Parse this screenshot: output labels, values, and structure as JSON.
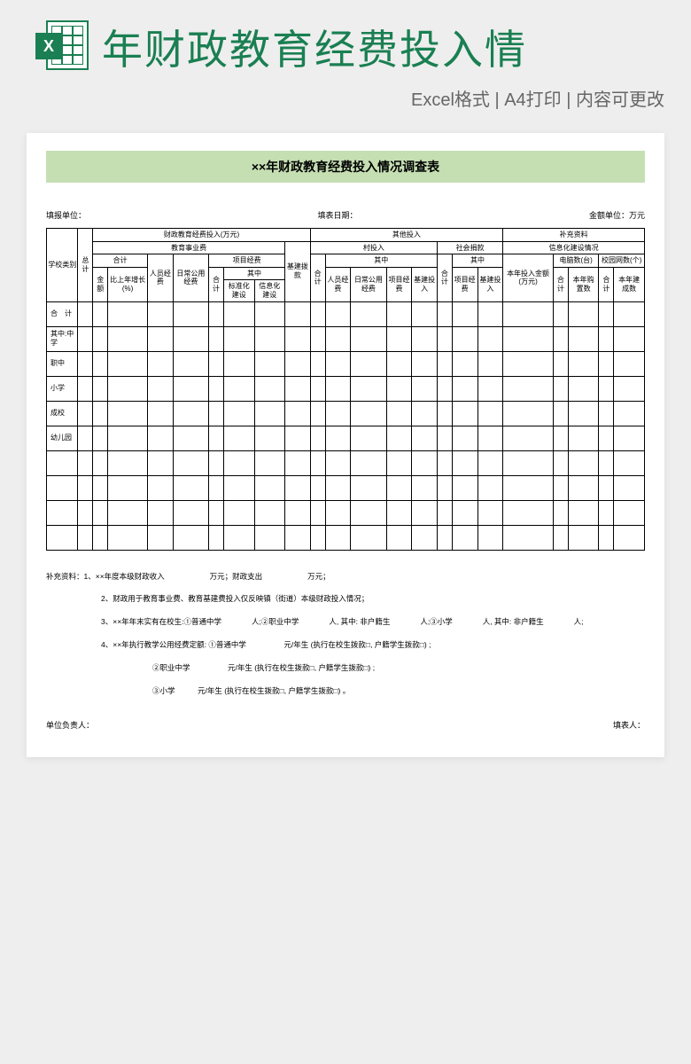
{
  "header": {
    "title": "年财政教育经费投入情",
    "subtitle": "Excel格式 | A4打印 | 内容可更改",
    "icon_letter": "X"
  },
  "doc": {
    "title": "××年财政教育经费投入情况调查表",
    "meta": {
      "unit_label": "填报单位：",
      "date_label": "填表日期：",
      "currency_label": "金额单位：万元"
    },
    "colors": {
      "page_bg": "#eeeeee",
      "accent": "#1a7f52",
      "title_bar_bg": "#c5dfb3",
      "doc_bg": "#ffffff",
      "border": "#000000"
    },
    "table": {
      "h_school_type": "学校类别",
      "h_total": "总计",
      "h_fiscal_edu": "财政教育经费投入(万元)",
      "h_other_input": "其他投入",
      "h_supplement": "补充资料",
      "h_edu_expense": "教育事业费",
      "h_infra_fund": "基建拨款",
      "h_village_input": "村投入",
      "h_social_donate": "社会捐款",
      "h_info_build": "信息化建设情况",
      "h_subtotal": "合计",
      "h_amount": "金额",
      "h_growth": "比上年增长(%)",
      "h_staff_fund": "人员经费",
      "h_daily_fund": "日常公用经费",
      "h_project_fund": "项目经费",
      "h_among": "其中",
      "h_std_build": "标准化建设",
      "h_info_const": "信息化建设",
      "h_infra_input": "基建投入",
      "h_year_amount": "本年投入金额(万元)",
      "h_computers": "电脑数(台)",
      "h_campus_net": "校园网数(个)",
      "h_year_buy": "本年购置数",
      "h_year_built": "本年建成数",
      "rows": [
        "合　计",
        "其中:中学",
        "职中",
        "小学",
        "成校",
        "幼儿园",
        "",
        "",
        "",
        ""
      ]
    },
    "notes": {
      "n1": "补充资料：1、××年度本级财政收入　　　　　　万元；财政支出　　　　　　万元；",
      "n2": "2、财政用于教育事业费、教育基建费投入仅反映镇（街道）本级财政投入情况；",
      "n3": "3、××年年末实有在校生:①普通中学　　　　人;②职业中学　　　　人, 其中: 非户籍生　　　　人;③小学　　　　人, 其中: 非户籍生　　　　人;",
      "n4a": "4、××年执行教学公用经费定额: ①普通中学　　　　　元/年生 (执行在校生拨款□, 户籍学生拨款□) ;",
      "n4b": "②职业中学　　　　　元/年生 (执行在校生拨款□, 户籍学生拨款□) ;",
      "n4c": "③小学　　　元/年生 (执行在校生拨款□, 户籍学生拨款□) 。"
    },
    "sign": {
      "left": "单位负责人：",
      "right": "填表人："
    }
  }
}
